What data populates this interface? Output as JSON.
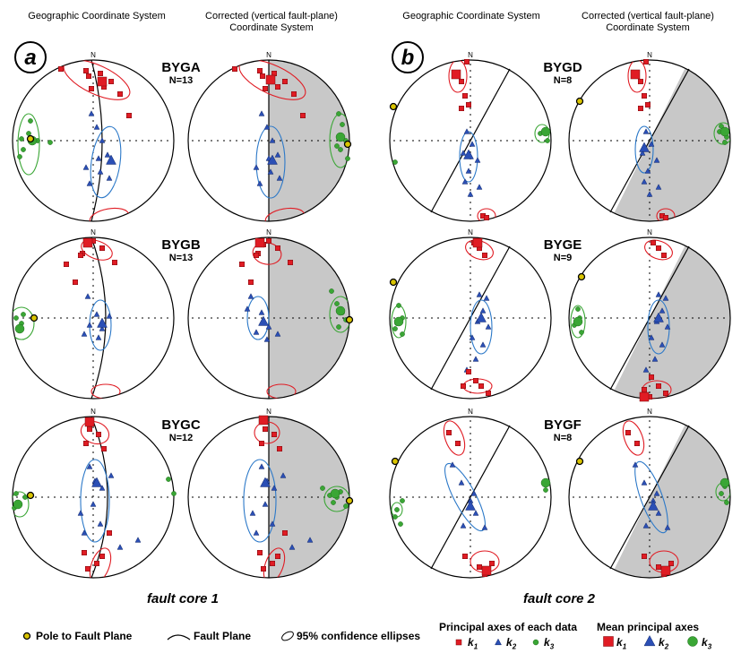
{
  "headers": {
    "geographic": "Geographic Coordinate System",
    "corrected_line1": "Corrected (vertical fault-plane)",
    "corrected_line2": "Coordinate System"
  },
  "panels": {
    "a": "a",
    "b": "b"
  },
  "north_label": "N",
  "sites": [
    {
      "name": "BYGA",
      "n": "N=13"
    },
    {
      "name": "BYGB",
      "n": "N=13"
    },
    {
      "name": "BYGC",
      "n": "N=12"
    },
    {
      "name": "BYGD",
      "n": "N=8"
    },
    {
      "name": "BYGE",
      "n": "N=9"
    },
    {
      "name": "BYGF",
      "n": "N=8"
    }
  ],
  "fault_cores": {
    "core1": "fault core 1",
    "core2": "fault core 2"
  },
  "legend": {
    "pole": "Pole to Fault Plane",
    "fault_plane": "Fault Plane",
    "ellipses": "95% confidence ellipses",
    "each_data_title": "Principal axes of each data",
    "mean_title": "Mean principal axes",
    "k1": "k",
    "k1_sub": "1",
    "k2": "k",
    "k2_sub": "2",
    "k3": "k",
    "k3_sub": "3"
  },
  "colors": {
    "k1": "#e01c24",
    "k2": "#2b4fb5",
    "k3": "#3aa635",
    "k1_ellipse": "#e01c24",
    "k2_ellipse": "#2b78c8",
    "k3_ellipse": "#3aa635",
    "fault_shade": "#c8c8c8",
    "pole": "#d9c400"
  }
}
